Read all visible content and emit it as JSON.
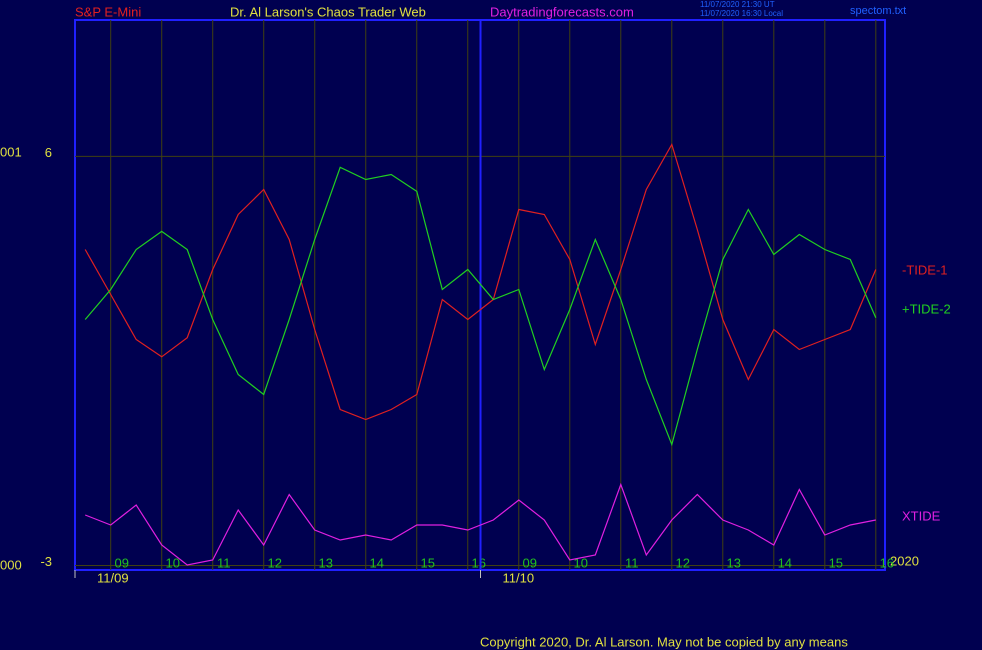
{
  "chart_data": {
    "type": "line",
    "instrument": "S&P E-Mini",
    "title": "Dr. Al Larson's Chaos Trader Web",
    "website": "Daytradingforecasts.com",
    "timestamps": [
      "11/07/2020 21:30 UT",
      "11/07/2020 16:30 Local"
    ],
    "filename": "spectom.txt",
    "left_labels": [
      "001",
      "000"
    ],
    "year": "2020",
    "copyright": "Copyright 2020, Dr. Al Larson. May not be copied by any means",
    "date_labels": [
      {
        "value": 8.3,
        "label": "11/09"
      },
      {
        "value": 16.25,
        "label": "11/10"
      }
    ],
    "xlim": [
      8.3,
      24.18
    ],
    "xticks": [
      {
        "value": 9,
        "label": "09"
      },
      {
        "value": 10,
        "label": "10"
      },
      11,
      12,
      13,
      14,
      15,
      16,
      {
        "value": 17,
        "label": "09"
      },
      {
        "value": 18,
        "label": "10"
      },
      {
        "value": 19,
        "label": "11"
      },
      {
        "value": 20,
        "label": "12"
      },
      {
        "value": 21,
        "label": "13"
      },
      {
        "value": 22,
        "label": "14"
      },
      {
        "value": 23,
        "label": "15"
      },
      {
        "value": 24,
        "label": "16"
      }
    ],
    "ylim": [
      -3.1,
      9
    ],
    "yticks": [
      -3,
      6
    ],
    "grid": true,
    "x": [
      8.5,
      9,
      9.5,
      10,
      10.5,
      11,
      11.5,
      12,
      12.5,
      13,
      13.5,
      14,
      14.5,
      15,
      15.5,
      16,
      16.5,
      17,
      17.5,
      18,
      18.5,
      19,
      19.5,
      20,
      20.5,
      21,
      21.5,
      22,
      22.5,
      23,
      23.5,
      24
    ],
    "series": [
      {
        "name": "-TIDE-1",
        "color": "#e02020",
        "values": [
          3.95,
          2.96,
          1.97,
          1.59,
          2.01,
          3.51,
          4.72,
          5.27,
          4.17,
          2.19,
          0.43,
          0.21,
          0.43,
          0.76,
          2.85,
          2.41,
          2.85,
          4.83,
          4.72,
          3.73,
          1.86,
          3.51,
          5.27,
          6.26,
          4.39,
          2.41,
          1.09,
          2.19,
          1.75,
          1.97,
          2.19,
          3.51
        ]
      },
      {
        "name": "+TIDE-2",
        "color": "#20d020",
        "values": [
          2.41,
          3.07,
          3.95,
          4.35,
          3.95,
          2.41,
          1.2,
          0.76,
          2.41,
          4.17,
          5.76,
          5.49,
          5.6,
          5.23,
          3.07,
          3.51,
          2.85,
          3.07,
          1.31,
          2.63,
          4.17,
          2.85,
          1.09,
          -0.34,
          1.75,
          3.73,
          4.83,
          3.84,
          4.28,
          3.95,
          3.73,
          2.45
        ]
      },
      {
        "name": "XTIDE",
        "color": "#e020e0",
        "values": [
          -1.89,
          -2.11,
          -1.67,
          -2.55,
          -2.99,
          -2.88,
          -1.78,
          -2.55,
          -1.44,
          -2.22,
          -2.44,
          -2.33,
          -2.44,
          -2.11,
          -2.11,
          -2.22,
          -2.0,
          -1.56,
          -2.0,
          -2.88,
          -2.77,
          -1.22,
          -2.77,
          -2.0,
          -1.44,
          -2.0,
          -2.22,
          -2.55,
          -1.33,
          -2.33,
          -2.11,
          -2.0
        ]
      }
    ]
  }
}
